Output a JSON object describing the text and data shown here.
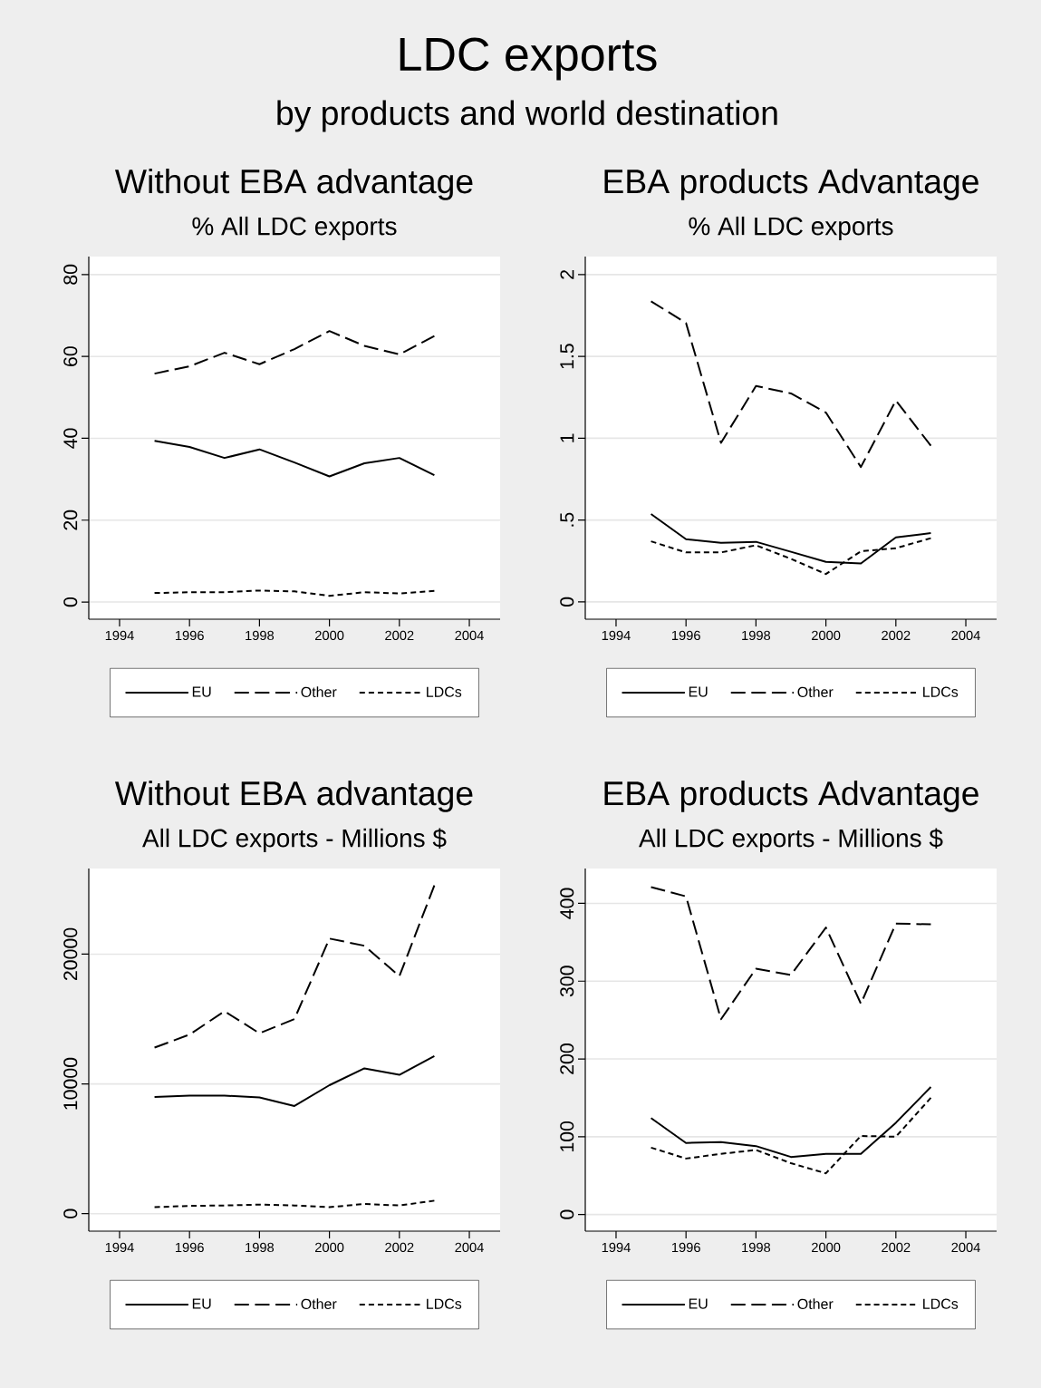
{
  "chart_data": [
    {
      "type": "other",
      "title": "LDC exports",
      "subtitle": "by products and world destination"
    },
    {
      "type": "line",
      "title": "Without EBA advantage",
      "subtitle": "% All LDC exports",
      "x": [
        1995,
        1996,
        1997,
        1998,
        1999,
        2000,
        2001,
        2002,
        2003
      ],
      "series": [
        {
          "name": "EU",
          "color": "#000000",
          "line_style": "solid",
          "values": [
            39.4,
            37.9,
            35.2,
            37.3,
            34.1,
            30.7,
            33.9,
            35.2,
            31.0
          ]
        },
        {
          "name": "Other",
          "color": "#000000",
          "line_style": "dashed",
          "values": [
            55.8,
            57.6,
            60.9,
            58.1,
            61.8,
            66.2,
            62.6,
            60.5,
            65.0
          ]
        },
        {
          "name": "LDCs",
          "color": "#000000",
          "line_style": "dotted",
          "values": [
            2.2,
            2.4,
            2.4,
            2.8,
            2.6,
            1.5,
            2.4,
            2.1,
            2.7
          ]
        }
      ],
      "xlim": [
        1993.12,
        2004.88
      ],
      "xticks": [
        1994,
        1996,
        1998,
        2000,
        2002,
        2004
      ],
      "ylim": [
        -4.2,
        84.4
      ],
      "yticks": [
        0,
        20,
        40,
        60,
        80
      ],
      "grid": "y",
      "legend": "bottom"
    },
    {
      "type": "line",
      "title": "EBA products Advantage",
      "subtitle": "% All LDC exports",
      "x": [
        1995,
        1996,
        1997,
        1998,
        1999,
        2000,
        2001,
        2002,
        2003
      ],
      "series": [
        {
          "name": "EU",
          "color": "#000000",
          "line_style": "solid",
          "values": [
            0.537,
            0.383,
            0.361,
            0.367,
            0.306,
            0.244,
            0.235,
            0.394,
            0.42
          ]
        },
        {
          "name": "Other",
          "color": "#000000",
          "line_style": "dashed",
          "values": [
            1.837,
            1.704,
            0.972,
            1.319,
            1.274,
            1.157,
            0.824,
            1.231,
            0.954
          ]
        },
        {
          "name": "LDCs",
          "color": "#000000",
          "line_style": "dotted",
          "values": [
            0.37,
            0.302,
            0.302,
            0.346,
            0.263,
            0.17,
            0.309,
            0.328,
            0.389
          ]
        }
      ],
      "xlim": [
        1993.12,
        2004.88
      ],
      "xticks": [
        1994,
        1996,
        1998,
        2000,
        2002,
        2004
      ],
      "ylim": [
        -0.106,
        2.11
      ],
      "yticks": [
        0,
        {
          "value": 0.5,
          "label": ".5"
        },
        1,
        1.5,
        2
      ],
      "grid": "y",
      "legend": "bottom"
    },
    {
      "type": "line",
      "title": "Without EBA advantage",
      "subtitle": "All LDC exports - Millions $",
      "x": [
        1995,
        1996,
        1997,
        1998,
        1999,
        2000,
        2001,
        2002,
        2003
      ],
      "series": [
        {
          "name": "EU",
          "color": "#000000",
          "line_style": "solid",
          "values": [
            9000,
            9100,
            9100,
            8960,
            8300,
            9900,
            11200,
            10700,
            12150
          ]
        },
        {
          "name": "Other",
          "color": "#000000",
          "line_style": "dashed",
          "values": [
            12800,
            13800,
            15600,
            13900,
            15000,
            21200,
            20650,
            18300,
            25300
          ]
        },
        {
          "name": "LDCs",
          "color": "#000000",
          "line_style": "dotted",
          "values": [
            500,
            600,
            630,
            700,
            630,
            500,
            750,
            630,
            1000
          ]
        }
      ],
      "xlim": [
        1993.12,
        2004.88
      ],
      "xticks": [
        1994,
        1996,
        1998,
        2000,
        2002,
        2004
      ],
      "ylim": [
        -1350,
        26600
      ],
      "yticks": [
        0,
        10000,
        20000
      ],
      "grid": "y",
      "legend": "bottom"
    },
    {
      "type": "line",
      "title": "EBA products Advantage",
      "subtitle": "All LDC exports - Millions $",
      "x": [
        1995,
        1996,
        1997,
        1998,
        1999,
        2000,
        2001,
        2002,
        2003
      ],
      "series": [
        {
          "name": "EU",
          "color": "#000000",
          "line_style": "solid",
          "values": [
            124,
            92,
            93,
            88,
            74,
            78,
            78,
            118,
            164
          ]
        },
        {
          "name": "Other",
          "color": "#000000",
          "line_style": "dashed",
          "values": [
            421,
            409,
            251,
            316,
            308,
            369,
            271,
            374,
            373
          ]
        },
        {
          "name": "LDCs",
          "color": "#000000",
          "line_style": "dotted",
          "values": [
            86,
            72,
            78,
            83,
            66,
            53,
            101,
            100,
            150
          ]
        }
      ],
      "xlim": [
        1993.12,
        2004.88
      ],
      "xticks": [
        1994,
        1996,
        1998,
        2000,
        2002,
        2004
      ],
      "ylim": [
        -21.4,
        444.8
      ],
      "yticks": [
        0,
        100,
        200,
        300,
        400
      ],
      "grid": "y",
      "legend": "bottom"
    }
  ]
}
